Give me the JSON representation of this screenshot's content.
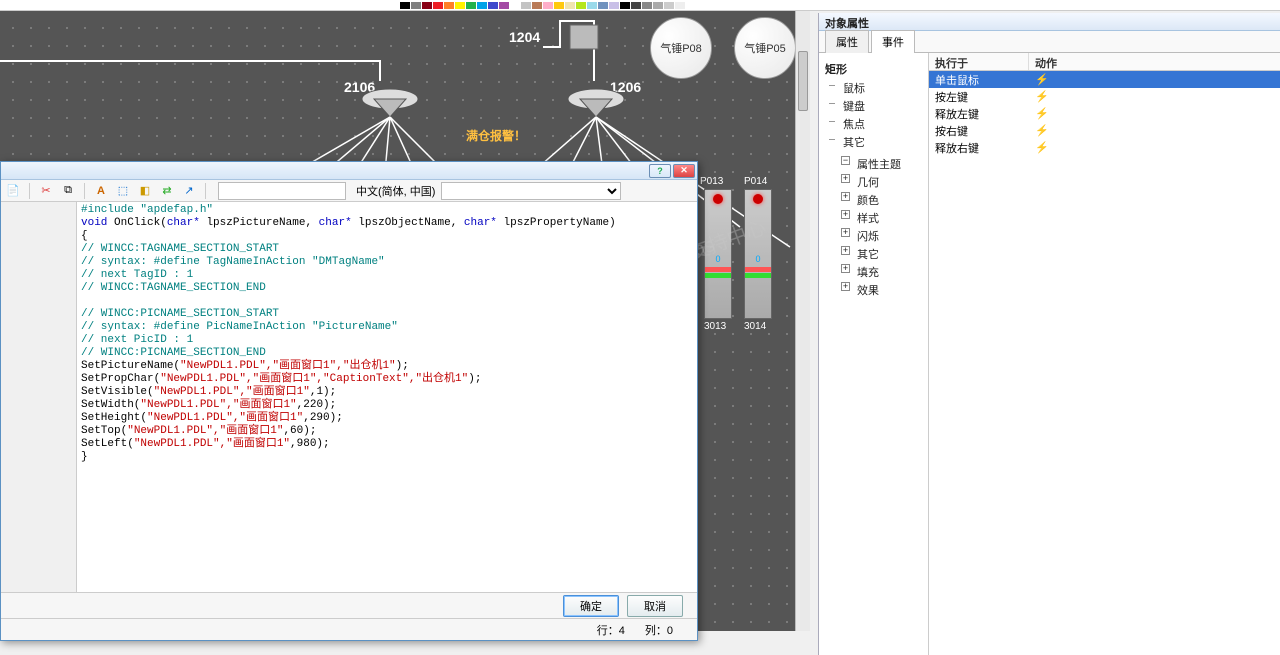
{
  "palette": [
    "#000000",
    "#7f7f7f",
    "#880015",
    "#ed1c24",
    "#ff7f27",
    "#fff200",
    "#22b14c",
    "#00a2e8",
    "#3f48cc",
    "#a349a4",
    "#ffffff",
    "#c3c3c3",
    "#b97a57",
    "#ffaec9",
    "#ffc90e",
    "#efe4b0",
    "#b5e61d",
    "#99d9ea",
    "#7092be",
    "#c8bfe7",
    "#000",
    "#444",
    "#888",
    "#aaa",
    "#ccc",
    "#eee",
    "#fff"
  ],
  "canvas": {
    "labels": {
      "l1204": "1204",
      "l2106": "2106",
      "l1206": "1206",
      "l3013": "3013",
      "l3014": "3014"
    },
    "warning": "满仓报警！",
    "buttons": {
      "p08": "气锤P08",
      "p05": "气锤P05"
    },
    "scada": {
      "top1": "P013",
      "top2": "P014",
      "val": "0"
    }
  },
  "watermark": {
    "line1": "西门子工业支持中心",
    "line2": "support.industry.siemens"
  },
  "dialog": {
    "toolbar_lang_label": "中文(简体, 中国)",
    "code": {
      "inc": "#include \"apdefap.h\"",
      "fn_pre": "void",
      "fn_name": " OnClick(",
      "fn_kw1": "char*",
      "fn_arg1": " lpszPictureName, ",
      "fn_kw2": "char*",
      "fn_arg2": " lpszObjectName, ",
      "fn_kw3": "char*",
      "fn_arg3": " lpszPropertyName)",
      "brace_open": "{",
      "cm1": "// WINCC:TAGNAME_SECTION_START",
      "cm2": "// syntax: #define TagNameInAction \"DMTagName\"",
      "cm3": "// next TagID : 1",
      "cm4": "// WINCC:TAGNAME_SECTION_END",
      "cm5": "// WINCC:PICNAME_SECTION_START",
      "cm6": "// syntax: #define PicNameInAction \"PictureName\"",
      "cm7": "// next PicID : 1",
      "cm8": "// WINCC:PICNAME_SECTION_END",
      "l1a": "SetPictureName(",
      "l1s": "\"NewPDL1.PDL\",\"画面窗口1\",\"出仓机1\"",
      "l1b": ");",
      "l2a": "SetPropChar(",
      "l2s": "\"NewPDL1.PDL\",\"画面窗口1\",\"CaptionText\",\"出仓机1\"",
      "l2b": ");",
      "l3a": "SetVisible(",
      "l3s": "\"NewPDL1.PDL\",\"画面窗口1\"",
      "l3b": ",1);",
      "l4a": "SetWidth(",
      "l4s": "\"NewPDL1.PDL\",\"画面窗口1\"",
      "l4b": ",220);",
      "l5a": "SetHeight(",
      "l5s": "\"NewPDL1.PDL\",\"画面窗口1\"",
      "l5b": ",290);",
      "l6a": "SetTop(",
      "l6s": "\"NewPDL1.PDL\",\"画面窗口1\"",
      "l6b": ",60);",
      "l7a": "SetLeft(",
      "l7s": "\"NewPDL1.PDL\",\"画面窗口1\"",
      "l7b": ",980);",
      "brace_close": "}"
    },
    "ok": "确定",
    "cancel": "取消",
    "status": {
      "row": "行：4",
      "col": "列：0"
    }
  },
  "panel": {
    "title": "对象属性",
    "tabs": {
      "props": "属性",
      "events": "事件"
    },
    "tree": {
      "root": "矩形",
      "items": [
        "鼠标",
        "键盘",
        "焦点",
        "其它"
      ],
      "group": "属性主题",
      "subs": [
        "几何",
        "颜色",
        "样式",
        "闪烁",
        "其它",
        "填充",
        "效果"
      ]
    },
    "events": {
      "head1": "执行于",
      "head2": "动作",
      "rows": [
        {
          "name": "单击鼠标",
          "sel": true
        },
        {
          "name": "按左键"
        },
        {
          "name": "释放左键"
        },
        {
          "name": "按右键"
        },
        {
          "name": "释放右键"
        }
      ]
    }
  }
}
